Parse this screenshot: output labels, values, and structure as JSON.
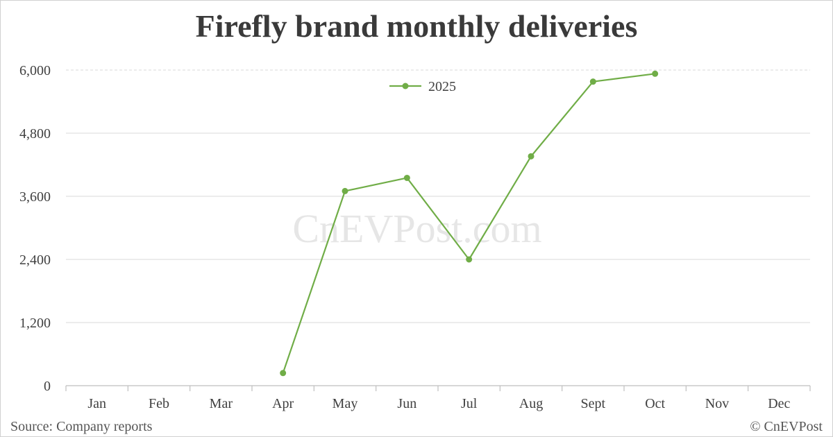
{
  "page": {
    "title": "Firefly brand monthly deliveries",
    "source": "Source: Company reports",
    "copyright": "© CnEVPost",
    "watermark": "CnEVPost.com"
  },
  "colors": {
    "series": "#70AD47",
    "grid": "#d9d9d9",
    "axis": "#bfbfbf",
    "text": "#404040",
    "watermark": "#e6e6e6"
  },
  "chart_data": {
    "type": "line",
    "title": "Firefly brand monthly deliveries",
    "xlabel": "",
    "ylabel": "",
    "categories": [
      "Jan",
      "Feb",
      "Mar",
      "Apr",
      "May",
      "Jun",
      "Jul",
      "Aug",
      "Sept",
      "Oct",
      "Nov",
      "Dec"
    ],
    "yticks": [
      "0",
      "1,200",
      "2,400",
      "3,600",
      "4,800",
      "6,000"
    ],
    "ylim": [
      0,
      6000
    ],
    "grid": true,
    "legend_position": "top-center",
    "series": [
      {
        "name": "2025",
        "values": [
          null,
          null,
          null,
          240,
          3700,
          3950,
          2400,
          4360,
          5780,
          5930,
          null,
          null
        ]
      }
    ]
  }
}
